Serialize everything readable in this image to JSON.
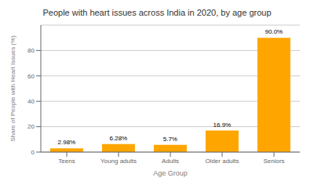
{
  "chart_data": {
    "type": "bar",
    "title": "People with heart issues across India in 2020, by age group",
    "categories": [
      "Teens",
      "Young adults",
      "Adults",
      "Older adults",
      "Seniors"
    ],
    "values": [
      2.98,
      6.28,
      5.7,
      16.9,
      90.0
    ],
    "value_labels": [
      "2.98%",
      "6.28%",
      "5.7%",
      "16.9%",
      "90.0%"
    ],
    "data_labels": true,
    "color": "#FFA500",
    "xlabel": "Age Group",
    "ylabel": "Share of People with Heart Issues (%)",
    "ylim": [
      0,
      100
    ],
    "yticks": [
      0,
      20,
      40,
      60,
      80
    ],
    "grid": true
  }
}
